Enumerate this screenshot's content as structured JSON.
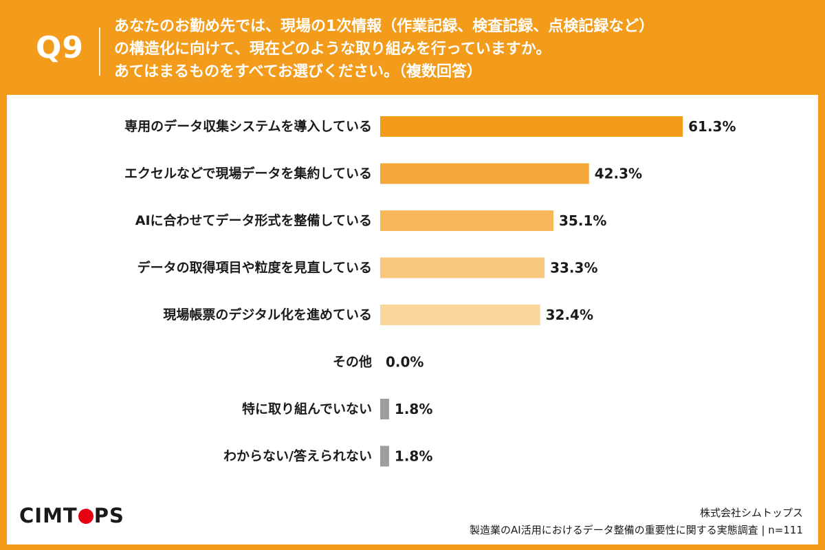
{
  "header": {
    "question_number": "Q9",
    "question_lines": [
      "あなたのお勤め先では、現場の1次情報（作業記録、検査記録、点検記録など）",
      "の構造化に向けて、現在どのような取り組みを行っていますか。",
      "あてはまるものをすべてお選びください。（複数回答）"
    ]
  },
  "footer": {
    "logo_prefix": "CIMT",
    "logo_suffix": "PS",
    "company": "株式会社シムトップス",
    "survey": "製造業のAI活用におけるデータ整備の重要性に関する実態調査 | n=111"
  },
  "colors": {
    "frame": "#F39C1B",
    "logo_dot": "#E60012",
    "gray_bar": "#9E9E9E"
  },
  "chart_data": {
    "type": "bar",
    "orientation": "horizontal",
    "categories": [
      "専用のデータ収集システムを導入している",
      "エクセルなどで現場データを集約している",
      "AIに合わせてデータ形式を整備している",
      "データの取得項目や粒度を見直している",
      "現場帳票のデジタル化を進めている",
      "その他",
      "特に取り組んでいない",
      "わからない/答えられない"
    ],
    "values": [
      61.3,
      42.3,
      35.1,
      33.3,
      32.4,
      0.0,
      1.8,
      1.8
    ],
    "value_labels": [
      "61.3%",
      "42.3%",
      "35.1%",
      "33.3%",
      "32.4%",
      "0.0%",
      "1.8%",
      "1.8%"
    ],
    "bar_colors": [
      "#F39C1B",
      "#F5A83A",
      "#F7B85A",
      "#F9C87C",
      "#FBD79C",
      "#9E9E9E",
      "#9E9E9E",
      "#9E9E9E"
    ],
    "xlim": [
      0,
      100
    ],
    "grid": false,
    "legend": "none"
  }
}
